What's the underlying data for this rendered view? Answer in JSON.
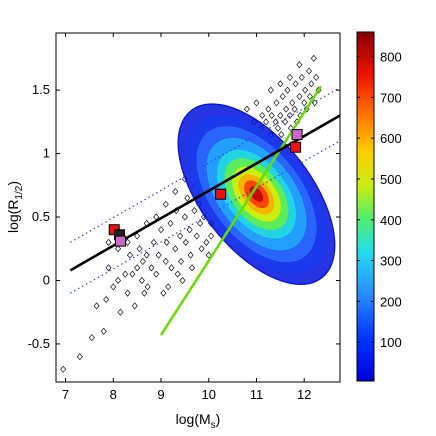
{
  "chart_data": {
    "type": "scatter",
    "xlabel": "log(M",
    "xlabel_sub": "s",
    "xlabel_end": ")",
    "ylabel": "log(R",
    "ylabel_sub": "1/2",
    "ylabel_end": ")",
    "xlim": [
      6.8,
      12.75
    ],
    "ylim": [
      -0.8,
      1.95
    ],
    "xticks": [
      7,
      8,
      9,
      10,
      11,
      12
    ],
    "yticks": [
      -0.5,
      0,
      0.5,
      1,
      1.5
    ],
    "xtick_labels": [
      "7",
      "8",
      "9",
      "10",
      "11",
      "12"
    ],
    "ytick_labels": [
      "-0.5",
      "0",
      "0.5",
      "1",
      "1.5"
    ],
    "grid": false,
    "colorbar": {
      "range": [
        5,
        860
      ],
      "ticks": [
        100,
        200,
        300,
        400,
        500,
        600,
        700,
        800
      ],
      "tick_labels": [
        "100",
        "200",
        "300",
        "400",
        "500",
        "600",
        "700",
        "800"
      ]
    },
    "fit_line": {
      "color": "#000000",
      "points": [
        [
          7.1,
          0.08
        ],
        [
          12.75,
          1.3
        ]
      ]
    },
    "scatter_lines": {
      "color": "#3344cc",
      "upper": [
        [
          7.1,
          0.3
        ],
        [
          12.75,
          1.52
        ]
      ],
      "lower": [
        [
          7.1,
          -0.1
        ],
        [
          12.75,
          1.1
        ]
      ]
    },
    "green_line": {
      "color": "#66dd00",
      "points": [
        [
          9.0,
          -0.43
        ],
        [
          12.35,
          1.53
        ]
      ]
    },
    "density": {
      "center": [
        11.0,
        0.68
      ],
      "angle_deg": 38,
      "contours": [
        {
          "level": 30,
          "sx": 1.15,
          "sy": 0.38,
          "color": "#0011dd"
        },
        {
          "level": 80,
          "sx": 1.05,
          "sy": 0.33,
          "color": "#1a3cf0"
        },
        {
          "level": 150,
          "sx": 0.92,
          "sy": 0.28,
          "color": "#2c6cff"
        },
        {
          "level": 230,
          "sx": 0.78,
          "sy": 0.23,
          "color": "#22aaff"
        },
        {
          "level": 330,
          "sx": 0.62,
          "sy": 0.18,
          "color": "#22dddd"
        },
        {
          "level": 420,
          "sx": 0.5,
          "sy": 0.145,
          "color": "#66ee44"
        },
        {
          "level": 520,
          "sx": 0.38,
          "sy": 0.11,
          "color": "#ddee00"
        },
        {
          "level": 620,
          "sx": 0.27,
          "sy": 0.08,
          "color": "#ffaa00"
        },
        {
          "level": 720,
          "sx": 0.18,
          "sy": 0.055,
          "color": "#ff3300"
        },
        {
          "level": 820,
          "sx": 0.09,
          "sy": 0.03,
          "color": "#bb0000"
        }
      ]
    },
    "squares": [
      {
        "x": 8.02,
        "y": 0.4,
        "color": "#ee1111"
      },
      {
        "x": 8.13,
        "y": 0.36,
        "color": "#222222"
      },
      {
        "x": 8.15,
        "y": 0.31,
        "color": "#cc66cc"
      },
      {
        "x": 10.25,
        "y": 0.68,
        "color": "#ee1111"
      },
      {
        "x": 11.82,
        "y": 1.05,
        "color": "#ee1111"
      },
      {
        "x": 11.85,
        "y": 1.15,
        "color": "#cc66cc"
      }
    ],
    "diamonds": [
      [
        6.95,
        -0.7
      ],
      [
        7.3,
        -0.6
      ],
      [
        7.55,
        -0.45
      ],
      [
        7.8,
        -0.4
      ],
      [
        7.85,
        -0.15
      ],
      [
        7.65,
        -0.2
      ],
      [
        7.9,
        0.1
      ],
      [
        8.0,
        -0.05
      ],
      [
        8.1,
        0.0
      ],
      [
        8.15,
        -0.25
      ],
      [
        8.25,
        0.05
      ],
      [
        8.3,
        -0.1
      ],
      [
        8.35,
        0.2
      ],
      [
        8.4,
        0.05
      ],
      [
        8.45,
        -0.2
      ],
      [
        8.5,
        0.1
      ],
      [
        8.55,
        0.25
      ],
      [
        8.6,
        0.0
      ],
      [
        8.62,
        0.15
      ],
      [
        8.7,
        0.2
      ],
      [
        8.72,
        -0.05
      ],
      [
        8.8,
        0.1
      ],
      [
        8.85,
        0.3
      ],
      [
        8.9,
        0.05
      ],
      [
        8.95,
        0.2
      ],
      [
        9.0,
        0.4
      ],
      [
        9.05,
        -0.1
      ],
      [
        9.1,
        0.15
      ],
      [
        9.12,
        0.3
      ],
      [
        9.2,
        0.45
      ],
      [
        9.22,
        0.1
      ],
      [
        9.3,
        0.25
      ],
      [
        9.32,
        0.55
      ],
      [
        9.4,
        0.35
      ],
      [
        9.42,
        0.15
      ],
      [
        9.5,
        0.5
      ],
      [
        9.52,
        0.3
      ],
      [
        9.55,
        0.65
      ],
      [
        9.6,
        0.4
      ],
      [
        9.62,
        0.2
      ],
      [
        9.7,
        0.55
      ],
      [
        9.72,
        0.75
      ],
      [
        9.75,
        0.35
      ],
      [
        9.8,
        0.6
      ],
      [
        9.82,
        0.45
      ],
      [
        9.85,
        0.85
      ],
      [
        9.9,
        0.5
      ],
      [
        9.92,
        0.7
      ],
      [
        9.95,
        0.3
      ],
      [
        10.0,
        0.6
      ],
      [
        10.02,
        0.8
      ],
      [
        10.05,
        0.45
      ],
      [
        10.1,
        0.65
      ],
      [
        10.12,
        0.9
      ],
      [
        10.15,
        0.55
      ],
      [
        10.2,
        0.75
      ],
      [
        10.22,
        1.0
      ],
      [
        10.25,
        0.6
      ],
      [
        10.3,
        0.85
      ],
      [
        10.32,
        0.7
      ],
      [
        10.35,
        0.95
      ],
      [
        10.4,
        0.75
      ],
      [
        10.42,
        1.05
      ],
      [
        10.45,
        0.65
      ],
      [
        10.5,
        0.9
      ],
      [
        10.52,
        0.8
      ],
      [
        10.55,
        1.1
      ],
      [
        10.6,
        0.85
      ],
      [
        10.62,
        0.95
      ],
      [
        10.65,
        0.75
      ],
      [
        10.7,
        1.0
      ],
      [
        10.72,
        1.15
      ],
      [
        10.75,
        0.9
      ],
      [
        10.8,
        1.05
      ],
      [
        10.82,
        0.85
      ],
      [
        10.85,
        1.2
      ],
      [
        10.9,
        0.95
      ],
      [
        10.92,
        1.1
      ],
      [
        10.95,
        1.25
      ],
      [
        11.0,
        1.0
      ],
      [
        11.02,
        1.15
      ],
      [
        11.05,
        0.9
      ],
      [
        11.1,
        1.2
      ],
      [
        11.12,
        1.3
      ],
      [
        11.15,
        1.05
      ],
      [
        11.2,
        1.25
      ],
      [
        11.22,
        1.1
      ],
      [
        11.25,
        1.35
      ],
      [
        11.3,
        1.15
      ],
      [
        11.32,
        1.3
      ],
      [
        11.35,
        1.0
      ],
      [
        11.4,
        1.25
      ],
      [
        11.42,
        1.4
      ],
      [
        11.45,
        1.2
      ],
      [
        11.5,
        1.3
      ],
      [
        11.52,
        1.15
      ],
      [
        11.55,
        1.45
      ],
      [
        11.6,
        1.25
      ],
      [
        11.62,
        1.35
      ],
      [
        11.65,
        1.5
      ],
      [
        11.7,
        1.3
      ],
      [
        11.72,
        1.2
      ],
      [
        11.75,
        1.4
      ],
      [
        11.8,
        1.35
      ],
      [
        11.82,
        1.55
      ],
      [
        11.85,
        1.25
      ],
      [
        11.9,
        1.45
      ],
      [
        11.92,
        1.3
      ],
      [
        11.95,
        1.6
      ],
      [
        12.0,
        1.4
      ],
      [
        12.02,
        1.5
      ],
      [
        12.05,
        1.35
      ],
      [
        12.1,
        1.65
      ],
      [
        12.12,
        1.45
      ],
      [
        12.15,
        1.55
      ],
      [
        12.2,
        1.75
      ],
      [
        12.22,
        1.4
      ],
      [
        12.25,
        1.6
      ],
      [
        12.3,
        1.5
      ],
      [
        11.9,
        1.7
      ],
      [
        11.7,
        1.6
      ],
      [
        11.5,
        1.55
      ],
      [
        11.3,
        1.5
      ],
      [
        11.0,
        1.4
      ],
      [
        10.8,
        1.35
      ],
      [
        10.6,
        1.25
      ],
      [
        10.3,
        1.2
      ],
      [
        10.1,
        1.1
      ],
      [
        9.9,
        1.0
      ],
      [
        9.7,
        0.95
      ],
      [
        9.5,
        0.8
      ],
      [
        9.3,
        0.7
      ],
      [
        9.1,
        0.6
      ],
      [
        8.9,
        0.5
      ],
      [
        8.7,
        0.45
      ],
      [
        8.5,
        0.35
      ],
      [
        8.3,
        0.3
      ],
      [
        8.1,
        0.25
      ],
      [
        7.9,
        0.3
      ],
      [
        8.65,
        -0.1
      ],
      [
        9.15,
        -0.05
      ],
      [
        9.35,
        0.05
      ],
      [
        9.45,
        0.0
      ],
      [
        9.65,
        0.1
      ],
      [
        10.0,
        0.2
      ],
      [
        10.05,
        0.35
      ],
      [
        9.85,
        0.25
      ],
      [
        10.4,
        0.5
      ],
      [
        10.6,
        0.55
      ],
      [
        10.9,
        0.7
      ],
      [
        11.1,
        0.8
      ],
      [
        11.4,
        0.9
      ],
      [
        11.6,
        1.0
      ],
      [
        11.25,
        0.95
      ],
      [
        10.75,
        0.6
      ],
      [
        10.45,
        0.4
      ]
    ]
  }
}
